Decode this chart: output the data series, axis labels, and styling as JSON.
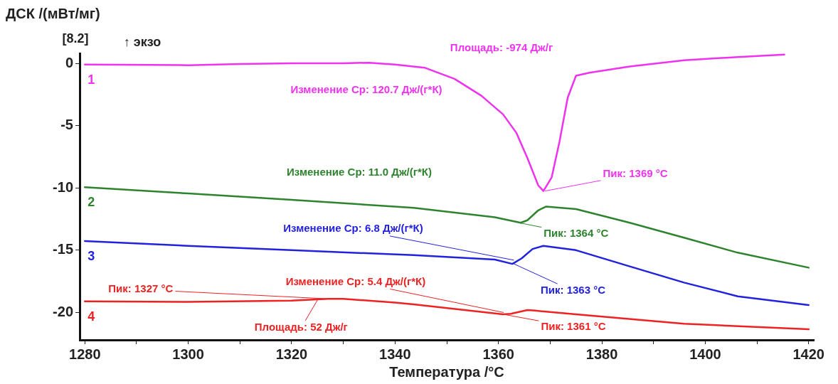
{
  "chart_data": {
    "type": "line",
    "ylabel": "ДСК /(мВт/мг)",
    "xlabel": "Температура /°C",
    "xlim": [
      1279,
      1421
    ],
    "ylim": [
      -22.2,
      0.8
    ],
    "xticks": [
      1280,
      {
        "value": 1290,
        "label": null
      },
      1300,
      {
        "value": 1310,
        "label": null
      },
      1320,
      {
        "value": 1330,
        "label": null
      },
      1340,
      {
        "value": 1350,
        "label": null
      },
      1360,
      {
        "value": 1370,
        "label": null
      },
      1380,
      {
        "value": 1390,
        "label": null
      },
      1400,
      {
        "value": 1410,
        "label": null
      },
      1420
    ],
    "yticks": [
      0,
      -5,
      -10,
      -15,
      -20
    ],
    "grid": false,
    "legend": false,
    "marker": "none",
    "line_style": "solid",
    "series": [
      {
        "name": "1",
        "color": "#ee33ee",
        "x": [
          1280,
          1300,
          1310,
          1320,
          1330,
          1335,
          1340,
          1345.7,
          1351.5,
          1356.7,
          1360.9,
          1363.5,
          1365.6,
          1367.7,
          1368.7,
          1370.3,
          1371.8,
          1373.4,
          1375,
          1377.6,
          1385.4,
          1395.9,
          1406.3,
          1415.3
        ],
        "values": [
          -0.1,
          -0.15,
          -0.05,
          0,
          0,
          0.05,
          -0.1,
          -0.35,
          -1.25,
          -2.6,
          -4.1,
          -5.6,
          -7.6,
          -9.8,
          -10.25,
          -9.15,
          -6.3,
          -2.75,
          -1,
          -0.75,
          -0.25,
          0.25,
          0.5,
          0.7
        ]
      },
      {
        "name": "2",
        "color": "#2e842e",
        "x": [
          1280,
          1300,
          1320,
          1343.6,
          1359.3,
          1364.3,
          1365.6,
          1367.7,
          1369.2,
          1375,
          1385.4,
          1395.9,
          1406.3,
          1420
        ],
        "values": [
          -9.95,
          -10.45,
          -10.95,
          -11.6,
          -12.35,
          -12.8,
          -12.6,
          -11.8,
          -11.5,
          -11.7,
          -12.8,
          -14,
          -15.2,
          -16.4
        ]
      },
      {
        "name": "3",
        "color": "#2222dd",
        "x": [
          1280,
          1300,
          1320,
          1343.6,
          1359.3,
          1362.7,
          1364.5,
          1366.6,
          1368.7,
          1375,
          1385.4,
          1395.9,
          1406.3,
          1420
        ],
        "values": [
          -14.26,
          -14.65,
          -15,
          -15.4,
          -15.75,
          -16.1,
          -15.65,
          -14.9,
          -14.65,
          -15,
          -16.3,
          -17.6,
          -18.7,
          -19.4
        ]
      },
      {
        "name": "4",
        "color": "#ee2222",
        "x": [
          1280,
          1300,
          1320,
          1327,
          1330,
          1340,
          1343.6,
          1360.9,
          1362.4,
          1365.6,
          1367.1,
          1375,
          1395.9,
          1420
        ],
        "values": [
          -19.1,
          -19.15,
          -19.05,
          -18.9,
          -18.9,
          -19.2,
          -19.35,
          -20.15,
          -20.1,
          -19.8,
          -19.85,
          -20.15,
          -20.9,
          -21.35
        ]
      }
    ],
    "annotations": [
      "[8.2]",
      "↑ экзо",
      "Площадь: -974 Дж/г",
      "Изменение Ср: 120.7 Дж/(г*К)",
      {
        "text": "Пик: 1369 °C",
        "x": 1369,
        "y": -10.25
      },
      "Изменение Ср: 11.0 Дж/(г*К)",
      {
        "text": "Пик: 1364 °C",
        "x": 1364,
        "y": -12.8
      },
      {
        "text": "Изменение Ср: 6.8 Дж/(г*К)",
        "x": 1363,
        "y": -15.8
      },
      {
        "text": "Пик: 1363 °C",
        "x": 1363,
        "y": -16.1
      },
      {
        "text": "Пик: 1327 °C",
        "x": 1327,
        "y": -18.9
      },
      {
        "text": "Изменение Ср: 5.4 Дж/(г*К)",
        "x": 1361,
        "y": -20
      },
      {
        "text": "Площадь: 52 Дж/г",
        "x": 1325,
        "y": -19
      },
      {
        "text": "Пик: 1361 °C",
        "x": 1361,
        "y": -20.15
      }
    ]
  }
}
